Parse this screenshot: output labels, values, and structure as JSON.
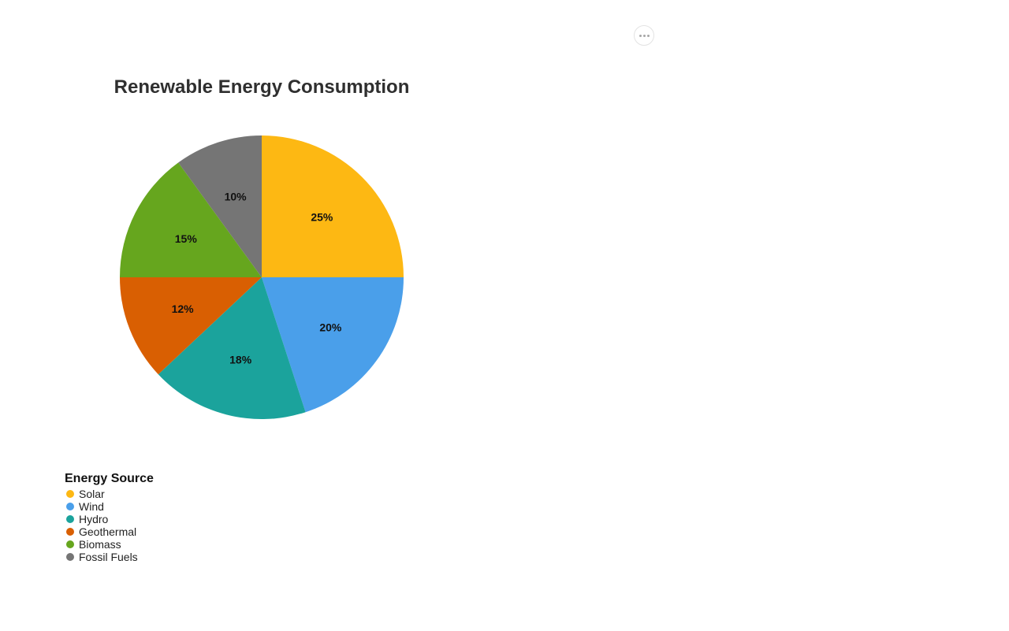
{
  "toolbar": {
    "more_icon": "more-horizontal-icon"
  },
  "chart_data": {
    "type": "pie",
    "title": "Renewable Energy Consumption",
    "legend_title": "Energy Source",
    "legend_placement": "bottom-left",
    "categories": [
      "Solar",
      "Wind",
      "Hydro",
      "Geothermal",
      "Biomass",
      "Fossil Fuels"
    ],
    "values": [
      25,
      20,
      18,
      12,
      15,
      10
    ],
    "labels": [
      "25%",
      "20%",
      "18%",
      "12%",
      "15%",
      "10%"
    ],
    "colors": [
      "#FDB813",
      "#4A9FEA",
      "#1BA39C",
      "#D95F02",
      "#66A61E",
      "#757575"
    ]
  }
}
